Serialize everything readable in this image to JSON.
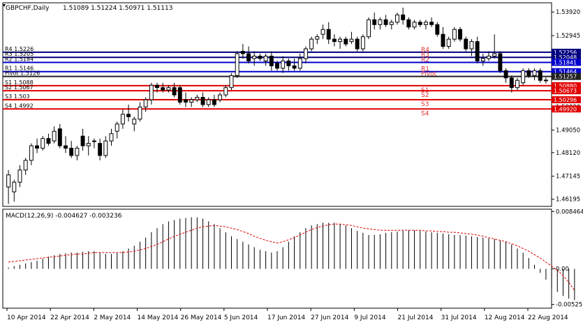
{
  "chart_data": [
    {
      "type": "candlestick",
      "symbol_label": "GBPCHF,Daily",
      "ohlc_readout": [
        "1.51089",
        "1.51224",
        "1.50971",
        "1.51113"
      ],
      "ylim": [
        1.459,
        1.543
      ],
      "y_ticks": [
        "1.53920",
        "1.52945",
        "1.50020",
        "1.49050",
        "1.48120",
        "1.47145",
        "1.46195"
      ],
      "candles": [
        {
          "o": 1.467,
          "h": 1.474,
          "l": 1.46,
          "c": 1.472
        },
        {
          "o": 1.465,
          "h": 1.47,
          "l": 1.461,
          "c": 1.469
        },
        {
          "o": 1.469,
          "h": 1.476,
          "l": 1.467,
          "c": 1.474
        },
        {
          "o": 1.474,
          "h": 1.479,
          "l": 1.472,
          "c": 1.478
        },
        {
          "o": 1.478,
          "h": 1.485,
          "l": 1.476,
          "c": 1.484
        },
        {
          "o": 1.484,
          "h": 1.487,
          "l": 1.481,
          "c": 1.483
        },
        {
          "o": 1.483,
          "h": 1.488,
          "l": 1.482,
          "c": 1.487
        },
        {
          "o": 1.487,
          "h": 1.489,
          "l": 1.484,
          "c": 1.485
        },
        {
          "o": 1.486,
          "h": 1.492,
          "l": 1.485,
          "c": 1.49
        },
        {
          "o": 1.491,
          "h": 1.493,
          "l": 1.483,
          "c": 1.484
        },
        {
          "o": 1.484,
          "h": 1.488,
          "l": 1.481,
          "c": 1.483
        },
        {
          "o": 1.483,
          "h": 1.486,
          "l": 1.479,
          "c": 1.48
        },
        {
          "o": 1.48,
          "h": 1.484,
          "l": 1.478,
          "c": 1.483
        },
        {
          "o": 1.488,
          "h": 1.491,
          "l": 1.482,
          "c": 1.484
        },
        {
          "o": 1.484,
          "h": 1.488,
          "l": 1.48,
          "c": 1.485
        },
        {
          "o": 1.486,
          "h": 1.487,
          "l": 1.483,
          "c": 1.486
        },
        {
          "o": 1.485,
          "h": 1.487,
          "l": 1.478,
          "c": 1.48
        },
        {
          "o": 1.48,
          "h": 1.488,
          "l": 1.479,
          "c": 1.486
        },
        {
          "o": 1.486,
          "h": 1.491,
          "l": 1.484,
          "c": 1.489
        },
        {
          "o": 1.49,
          "h": 1.494,
          "l": 1.487,
          "c": 1.493
        },
        {
          "o": 1.493,
          "h": 1.499,
          "l": 1.491,
          "c": 1.497
        },
        {
          "o": 1.497,
          "h": 1.501,
          "l": 1.494,
          "c": 1.496
        },
        {
          "o": 1.493,
          "h": 1.496,
          "l": 1.49,
          "c": 1.495
        },
        {
          "o": 1.495,
          "h": 1.502,
          "l": 1.494,
          "c": 1.5
        },
        {
          "o": 1.5,
          "h": 1.504,
          "l": 1.498,
          "c": 1.503
        },
        {
          "o": 1.503,
          "h": 1.51,
          "l": 1.501,
          "c": 1.509
        },
        {
          "o": 1.509,
          "h": 1.51,
          "l": 1.506,
          "c": 1.508
        },
        {
          "o": 1.508,
          "h": 1.51,
          "l": 1.506,
          "c": 1.507
        },
        {
          "o": 1.507,
          "h": 1.509,
          "l": 1.506,
          "c": 1.508
        },
        {
          "o": 1.508,
          "h": 1.51,
          "l": 1.504,
          "c": 1.505
        },
        {
          "o": 1.508,
          "h": 1.509,
          "l": 1.501,
          "c": 1.502
        },
        {
          "o": 1.503,
          "h": 1.506,
          "l": 1.5,
          "c": 1.502
        },
        {
          "o": 1.502,
          "h": 1.504,
          "l": 1.5,
          "c": 1.503
        },
        {
          "o": 1.503,
          "h": 1.505,
          "l": 1.502,
          "c": 1.504
        },
        {
          "o": 1.504,
          "h": 1.506,
          "l": 1.5,
          "c": 1.501
        },
        {
          "o": 1.501,
          "h": 1.504,
          "l": 1.5,
          "c": 1.503
        },
        {
          "o": 1.503,
          "h": 1.505,
          "l": 1.5,
          "c": 1.501
        },
        {
          "o": 1.503,
          "h": 1.506,
          "l": 1.502,
          "c": 1.505
        },
        {
          "o": 1.505,
          "h": 1.509,
          "l": 1.504,
          "c": 1.508
        },
        {
          "o": 1.508,
          "h": 1.514,
          "l": 1.507,
          "c": 1.513
        },
        {
          "o": 1.513,
          "h": 1.523,
          "l": 1.512,
          "c": 1.522
        },
        {
          "o": 1.523,
          "h": 1.526,
          "l": 1.52,
          "c": 1.522
        },
        {
          "o": 1.522,
          "h": 1.525,
          "l": 1.518,
          "c": 1.519
        },
        {
          "o": 1.52,
          "h": 1.523,
          "l": 1.517,
          "c": 1.521
        },
        {
          "o": 1.521,
          "h": 1.522,
          "l": 1.519,
          "c": 1.52
        },
        {
          "o": 1.519,
          "h": 1.522,
          "l": 1.517,
          "c": 1.521
        },
        {
          "o": 1.521,
          "h": 1.523,
          "l": 1.515,
          "c": 1.517
        },
        {
          "o": 1.518,
          "h": 1.519,
          "l": 1.515,
          "c": 1.516
        },
        {
          "o": 1.516,
          "h": 1.521,
          "l": 1.514,
          "c": 1.519
        },
        {
          "o": 1.519,
          "h": 1.52,
          "l": 1.515,
          "c": 1.517
        },
        {
          "o": 1.517,
          "h": 1.52,
          "l": 1.515,
          "c": 1.516
        },
        {
          "o": 1.516,
          "h": 1.522,
          "l": 1.515,
          "c": 1.52
        },
        {
          "o": 1.52,
          "h": 1.525,
          "l": 1.518,
          "c": 1.524
        },
        {
          "o": 1.524,
          "h": 1.529,
          "l": 1.523,
          "c": 1.528
        },
        {
          "o": 1.528,
          "h": 1.53,
          "l": 1.526,
          "c": 1.529
        },
        {
          "o": 1.53,
          "h": 1.534,
          "l": 1.528,
          "c": 1.532
        },
        {
          "o": 1.532,
          "h": 1.535,
          "l": 1.526,
          "c": 1.528
        },
        {
          "o": 1.528,
          "h": 1.53,
          "l": 1.525,
          "c": 1.527
        },
        {
          "o": 1.527,
          "h": 1.529,
          "l": 1.524,
          "c": 1.528
        },
        {
          "o": 1.528,
          "h": 1.529,
          "l": 1.525,
          "c": 1.526
        },
        {
          "o": 1.527,
          "h": 1.531,
          "l": 1.526,
          "c": 1.528
        },
        {
          "o": 1.528,
          "h": 1.529,
          "l": 1.523,
          "c": 1.524
        },
        {
          "o": 1.524,
          "h": 1.53,
          "l": 1.523,
          "c": 1.529
        },
        {
          "o": 1.529,
          "h": 1.537,
          "l": 1.528,
          "c": 1.536
        },
        {
          "o": 1.536,
          "h": 1.539,
          "l": 1.532,
          "c": 1.534
        },
        {
          "o": 1.534,
          "h": 1.537,
          "l": 1.532,
          "c": 1.536
        },
        {
          "o": 1.536,
          "h": 1.538,
          "l": 1.533,
          "c": 1.534
        },
        {
          "o": 1.534,
          "h": 1.536,
          "l": 1.532,
          "c": 1.535
        },
        {
          "o": 1.535,
          "h": 1.539,
          "l": 1.534,
          "c": 1.538
        },
        {
          "o": 1.538,
          "h": 1.541,
          "l": 1.534,
          "c": 1.536
        },
        {
          "o": 1.536,
          "h": 1.537,
          "l": 1.532,
          "c": 1.533
        },
        {
          "o": 1.533,
          "h": 1.536,
          "l": 1.532,
          "c": 1.535
        },
        {
          "o": 1.535,
          "h": 1.536,
          "l": 1.533,
          "c": 1.534
        },
        {
          "o": 1.534,
          "h": 1.536,
          "l": 1.532,
          "c": 1.535
        },
        {
          "o": 1.535,
          "h": 1.537,
          "l": 1.533,
          "c": 1.534
        },
        {
          "o": 1.534,
          "h": 1.535,
          "l": 1.529,
          "c": 1.53
        },
        {
          "o": 1.53,
          "h": 1.533,
          "l": 1.524,
          "c": 1.525
        },
        {
          "o": 1.525,
          "h": 1.529,
          "l": 1.524,
          "c": 1.528
        },
        {
          "o": 1.528,
          "h": 1.533,
          "l": 1.527,
          "c": 1.532
        },
        {
          "o": 1.532,
          "h": 1.533,
          "l": 1.527,
          "c": 1.528
        },
        {
          "o": 1.528,
          "h": 1.529,
          "l": 1.523,
          "c": 1.524
        },
        {
          "o": 1.524,
          "h": 1.528,
          "l": 1.521,
          "c": 1.527
        },
        {
          "o": 1.527,
          "h": 1.529,
          "l": 1.518,
          "c": 1.519
        },
        {
          "o": 1.519,
          "h": 1.522,
          "l": 1.517,
          "c": 1.52
        },
        {
          "o": 1.52,
          "h": 1.523,
          "l": 1.519,
          "c": 1.521
        },
        {
          "o": 1.521,
          "h": 1.53,
          "l": 1.52,
          "c": 1.522
        },
        {
          "o": 1.522,
          "h": 1.523,
          "l": 1.514,
          "c": 1.515
        },
        {
          "o": 1.515,
          "h": 1.516,
          "l": 1.51,
          "c": 1.512
        },
        {
          "o": 1.512,
          "h": 1.513,
          "l": 1.506,
          "c": 1.508
        },
        {
          "o": 1.508,
          "h": 1.512,
          "l": 1.507,
          "c": 1.511
        },
        {
          "o": 1.51,
          "h": 1.516,
          "l": 1.509,
          "c": 1.515
        },
        {
          "o": 1.515,
          "h": 1.516,
          "l": 1.512,
          "c": 1.513
        },
        {
          "o": 1.513,
          "h": 1.516,
          "l": 1.511,
          "c": 1.515
        },
        {
          "o": 1.515,
          "h": 1.516,
          "l": 1.51,
          "c": 1.511
        },
        {
          "o": 1.5109,
          "h": 1.5122,
          "l": 1.5097,
          "c": 1.5111
        }
      ],
      "pivot_lines": [
        {
          "name": "R4",
          "left_label": "R4 1.5226",
          "price": 1.5226,
          "box_label": "1.52256",
          "color": "#000080"
        },
        {
          "name": "R3",
          "left_label": "R3 1.5205",
          "price": 1.5205,
          "box_label": "1.52048",
          "color": "#000080"
        },
        {
          "name": "R2",
          "left_label": "R2 1.5184",
          "price": 1.5184,
          "box_label": "1.51841",
          "color": "#0000cc"
        },
        {
          "name": "R1",
          "left_label": "R1 1.5146",
          "price": 1.5146,
          "box_label": "1.51464",
          "color": "#0000cc"
        },
        {
          "name": "Pivot",
          "left_label": "Pivot 1.5126",
          "price": 1.5126,
          "box_label": "1.51257",
          "color": "#202020"
        },
        {
          "name": "S1",
          "left_label": "S1 1.5088",
          "price": 1.5088,
          "box_label": "1.50880",
          "color": "#e00000"
        },
        {
          "name": "S2",
          "left_label": "S2 1.5067",
          "price": 1.5067,
          "box_label": "1.50673",
          "color": "#e00000"
        },
        {
          "name": "S3",
          "left_label": "S3 1.503",
          "price": 1.503,
          "box_label": "1.50296",
          "color": "#e00000"
        },
        {
          "name": "S4",
          "left_label": "S4 1.4992",
          "price": 1.4992,
          "box_label": "1.49920",
          "color": "#e00000"
        }
      ]
    },
    {
      "type": "bar+line",
      "title": "MACD(12,26,9) -0.004627 -0.003236",
      "ylim": [
        -0.0058,
        0.0088
      ],
      "y_ticks": [
        "0.008464",
        "0.00",
        "-0.005251"
      ],
      "histogram": [
        0.0002,
        0.0004,
        0.0006,
        0.0008,
        0.001,
        0.0012,
        0.0015,
        0.0018,
        0.002,
        0.0022,
        0.0023,
        0.0024,
        0.0024,
        0.0025,
        0.0026,
        0.0026,
        0.0024,
        0.0022,
        0.0022,
        0.0023,
        0.0026,
        0.003,
        0.0034,
        0.004,
        0.0046,
        0.0054,
        0.006,
        0.0066,
        0.007,
        0.0072,
        0.0074,
        0.0075,
        0.0076,
        0.0076,
        0.0074,
        0.007,
        0.0066,
        0.006,
        0.0054,
        0.0048,
        0.0044,
        0.004,
        0.0036,
        0.0032,
        0.0028,
        0.0026,
        0.0024,
        0.0026,
        0.0032,
        0.004,
        0.0048,
        0.0054,
        0.006,
        0.0064,
        0.0066,
        0.0068,
        0.0068,
        0.0068,
        0.0066,
        0.0064,
        0.006,
        0.0056,
        0.0053,
        0.005,
        0.005,
        0.0051,
        0.0053,
        0.0054,
        0.0055,
        0.0056,
        0.0057,
        0.0057,
        0.0056,
        0.0055,
        0.0054,
        0.0053,
        0.0052,
        0.0051,
        0.005,
        0.005,
        0.0049,
        0.0048,
        0.0047,
        0.0046,
        0.0045,
        0.0044,
        0.0042,
        0.004,
        0.0036,
        0.003,
        0.0024,
        0.0016,
        0.0006,
        -0.0006,
        -0.0016,
        -0.0026,
        -0.0034,
        -0.004,
        -0.0044,
        -0.0046
      ],
      "signal": [
        0.001,
        0.0011,
        0.0012,
        0.0013,
        0.0014,
        0.0015,
        0.0016,
        0.0017,
        0.0018,
        0.0019,
        0.002,
        0.0021,
        0.0022,
        0.0022,
        0.0023,
        0.0024,
        0.0024,
        0.0024,
        0.0024,
        0.0024,
        0.0024,
        0.0025,
        0.0026,
        0.0028,
        0.003,
        0.0033,
        0.0036,
        0.004,
        0.0044,
        0.0048,
        0.0051,
        0.0054,
        0.0057,
        0.006,
        0.0062,
        0.0063,
        0.0064,
        0.0063,
        0.0062,
        0.006,
        0.0058,
        0.0055,
        0.0052,
        0.0048,
        0.0045,
        0.0042,
        0.004,
        0.0038,
        0.004,
        0.0043,
        0.0046,
        0.005,
        0.0054,
        0.0058,
        0.0061,
        0.0063,
        0.0065,
        0.0066,
        0.0066,
        0.0065,
        0.0064,
        0.0062,
        0.006,
        0.0059,
        0.0058,
        0.0057,
        0.0057,
        0.0057,
        0.0057,
        0.0057,
        0.0057,
        0.0057,
        0.0057,
        0.0056,
        0.0056,
        0.0055,
        0.0055,
        0.0054,
        0.0054,
        0.0053,
        0.0052,
        0.0051,
        0.005,
        0.0048,
        0.0046,
        0.0044,
        0.0042,
        0.004,
        0.0037,
        0.0034,
        0.003,
        0.0026,
        0.0021,
        0.0016,
        0.001,
        0.0004,
        -0.0002,
        -0.001,
        -0.002,
        -0.0032
      ]
    }
  ],
  "x_axis_labels": [
    "10 Apr 2014",
    "22 Apr 2014",
    "2 May 2014",
    "14 May 2014",
    "26 May 2014",
    "5 Jun 2014",
    "17 Jun 2014",
    "27 Jun 2014",
    "9 Jul 2014",
    "21 Jul 2014",
    "31 Jul 2014",
    "12 Aug 2014",
    "22 Aug 2014"
  ]
}
